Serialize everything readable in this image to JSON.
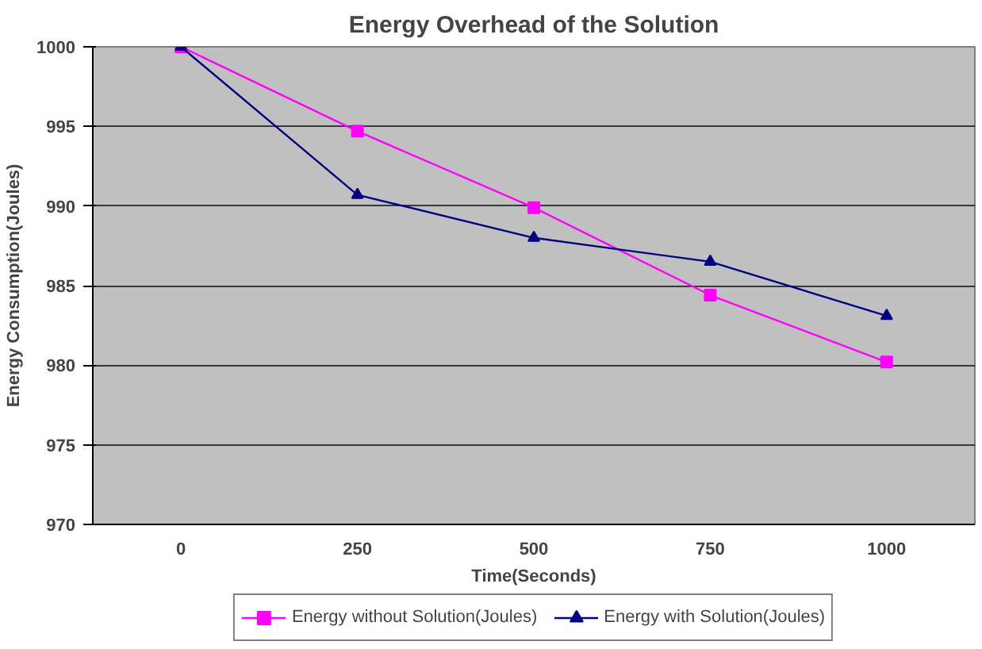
{
  "chart_data": {
    "type": "line",
    "title": "Energy Overhead of the Solution",
    "xlabel": "Time(Seconds)",
    "ylabel": "Energy Consumption(Joules)",
    "categories": [
      "0",
      "250",
      "500",
      "750",
      "1000"
    ],
    "series": [
      {
        "name": "Energy without Solution(Joules)",
        "color": "#ff00ff",
        "marker": "square",
        "values": [
          1000,
          994.7,
          989.9,
          984.4,
          980.2
        ]
      },
      {
        "name": "Energy with Solution(Joules)",
        "color": "#000080",
        "marker": "triangle",
        "values": [
          1000,
          990.7,
          988.0,
          986.5,
          983.1
        ]
      }
    ],
    "ylim": [
      970,
      1000
    ],
    "yticks": [
      970,
      975,
      980,
      985,
      990,
      995,
      1000
    ],
    "grid": "y",
    "legend": "bottom"
  }
}
